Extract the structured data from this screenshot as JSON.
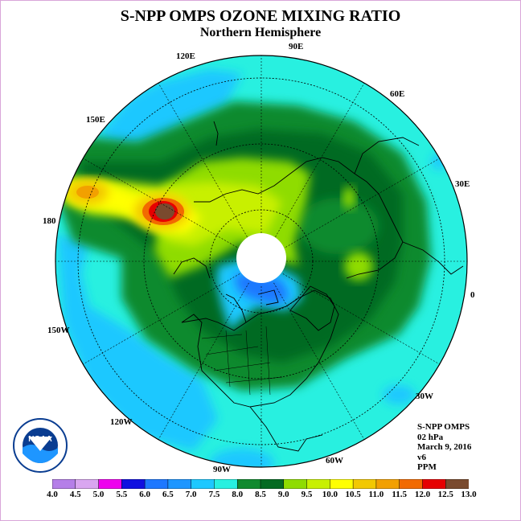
{
  "header": {
    "title": "S-NPP OMPS OZONE MIXING RATIO",
    "subtitle": "Northern Hemisphere"
  },
  "map": {
    "projection": "north-polar-stereographic",
    "longitude_labels": [
      "90E",
      "60E",
      "30E",
      "0",
      "30W",
      "60W",
      "90W",
      "120W",
      "150W",
      "180",
      "150E",
      "120E"
    ],
    "polar_gap_color": "#ffffff",
    "coastline_color": "#000000"
  },
  "info": {
    "instrument": "S-NPP OMPS",
    "level": "02 hPa",
    "date": "March 9, 2016",
    "version": "v6",
    "units": "PPM"
  },
  "colorbar": {
    "colors": [
      "#b57fe8",
      "#d9a6f0",
      "#ee00ee",
      "#1010e0",
      "#1e78ff",
      "#1e96ff",
      "#1ec8ff",
      "#28f0e0",
      "#118a2f",
      "#056b22",
      "#8fdc00",
      "#c8f000",
      "#ffff00",
      "#f2c800",
      "#f2a000",
      "#f26a00",
      "#e60000",
      "#7a4a2e"
    ],
    "tick_labels": [
      "4.0",
      "4.5",
      "5.0",
      "5.5",
      "6.0",
      "6.5",
      "7.0",
      "7.5",
      "8.0",
      "8.5",
      "9.0",
      "9.5",
      "10.0",
      "10.5",
      "11.0",
      "11.5",
      "12.0",
      "12.5",
      "13.0"
    ]
  },
  "logo": {
    "name": "NOAA",
    "ring_text": "NATIONAL OCEANIC AND ATMOSPHERIC ADMINISTRATION · U.S. DEPARTMENT OF COMMERCE",
    "colors": {
      "blue": "#0a3d91",
      "light_blue": "#1e96ff",
      "white": "#ffffff"
    }
  }
}
